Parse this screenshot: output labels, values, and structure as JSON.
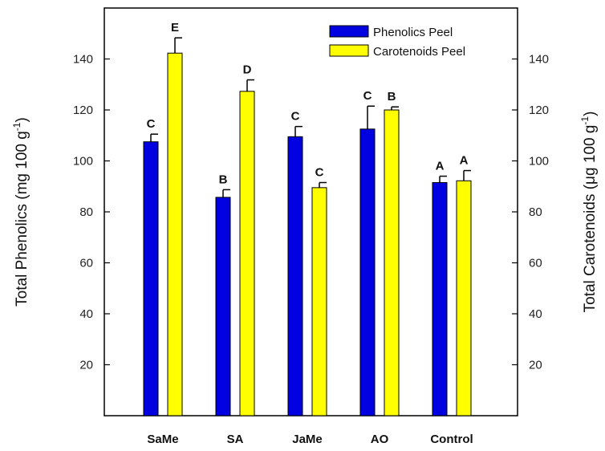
{
  "chart_data": {
    "type": "bar",
    "categories": [
      "SaMe",
      "SA",
      "JaMe",
      "AO",
      "Control"
    ],
    "series": [
      {
        "name": "Phenolics Peel",
        "color": "#0000e0",
        "axis": "left",
        "values": [
          107.5,
          85.7,
          109.5,
          112.5,
          91.5
        ],
        "errors": [
          3.0,
          3.0,
          4.0,
          9.0,
          2.5
        ],
        "letters": [
          "C",
          "B",
          "C",
          "C",
          "A"
        ]
      },
      {
        "name": "Carotenoids Peel",
        "color": "#ffff00",
        "axis": "right",
        "values": [
          142.3,
          127.3,
          89.5,
          120.0,
          92.2
        ],
        "errors": [
          6.0,
          4.5,
          2.0,
          1.2,
          4.0
        ],
        "letters": [
          "E",
          "D",
          "C",
          "B",
          "A"
        ]
      }
    ],
    "ylabel_left_main": "Total Phenolics (mg 100 g",
    "ylabel_left_sup": "-1",
    "ylabel_left_end": ")",
    "ylabel_right_main": "Total Carotenoids (μg 100 g",
    "ylabel_right_sup": "-1",
    "ylabel_right_end": ")",
    "ylim": [
      0,
      160
    ],
    "yticks": [
      20,
      40,
      60,
      80,
      100,
      120,
      140
    ],
    "legend_position": "top-right"
  }
}
